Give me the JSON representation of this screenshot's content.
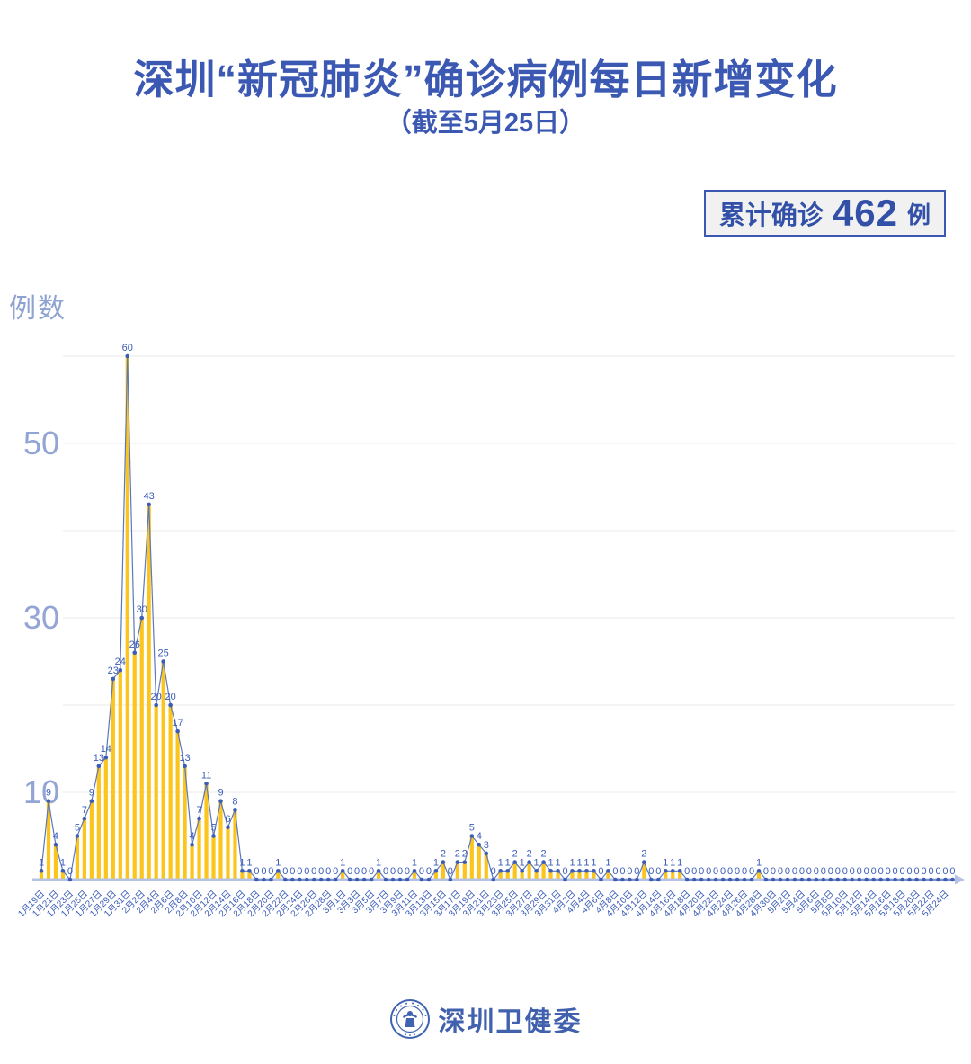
{
  "header": {
    "title": "深圳“新冠肺炎”确诊病例每日新增变化",
    "subtitle": "（截至5月25日）",
    "badge": {
      "label": "累计确诊",
      "value": "462",
      "unit": "例"
    }
  },
  "footer": {
    "org": "深圳卫健委",
    "logo": "shenzhen-health-commission-seal"
  },
  "colors": {
    "primary": "#3A5CB8",
    "title_blue": "#3B59B3",
    "light_axis_label": "#93A5D4",
    "bar": "#FBC51C",
    "line": "#5B78BD",
    "dot": "#3D5DB5",
    "grid": "#E9E9E9",
    "axis_line": "#B6C2E3",
    "badge_bg": "#F1F1F2"
  },
  "chart_data": {
    "type": "bar",
    "title": "深圳“新冠肺炎”确诊病例每日新增变化",
    "subtitle": "（截至5月25日）",
    "ylabel": "例数",
    "xlabel": "",
    "ylim": [
      0,
      62
    ],
    "grid_values": [
      10,
      20,
      30,
      40,
      50,
      60
    ],
    "yticks_labeled": [
      10,
      30,
      50
    ],
    "x_tick_every": 2,
    "legend": "none",
    "total_label": "累计确诊462例",
    "total": 462,
    "categories": [
      "1月19日",
      "1月20日",
      "1月21日",
      "1月22日",
      "1月23日",
      "1月24日",
      "1月25日",
      "1月26日",
      "1月27日",
      "1月28日",
      "1月29日",
      "1月30日",
      "1月31日",
      "2月1日",
      "2月2日",
      "2月3日",
      "2月4日",
      "2月5日",
      "2月6日",
      "2月7日",
      "2月8日",
      "2月9日",
      "2月10日",
      "2月11日",
      "2月12日",
      "2月13日",
      "2月14日",
      "2月15日",
      "2月16日",
      "2月17日",
      "2月18日",
      "2月19日",
      "2月20日",
      "2月21日",
      "2月22日",
      "2月23日",
      "2月24日",
      "2月25日",
      "2月26日",
      "2月27日",
      "2月28日",
      "2月29日",
      "3月1日",
      "3月2日",
      "3月3日",
      "3月4日",
      "3月5日",
      "3月6日",
      "3月7日",
      "3月8日",
      "3月9日",
      "3月10日",
      "3月11日",
      "3月12日",
      "3月13日",
      "3月14日",
      "3月15日",
      "3月16日",
      "3月17日",
      "3月18日",
      "3月19日",
      "3月20日",
      "3月21日",
      "3月22日",
      "3月23日",
      "3月24日",
      "3月25日",
      "3月26日",
      "3月27日",
      "3月28日",
      "3月29日",
      "3月30日",
      "3月31日",
      "4月1日",
      "4月2日",
      "4月3日",
      "4月4日",
      "4月5日",
      "4月6日",
      "4月7日",
      "4月8日",
      "4月9日",
      "4月10日",
      "4月11日",
      "4月12日",
      "4月13日",
      "4月14日",
      "4月15日",
      "4月16日",
      "4月17日",
      "4月18日",
      "4月19日",
      "4月20日",
      "4月21日",
      "4月22日",
      "4月23日",
      "4月24日",
      "4月25日",
      "4月26日",
      "4月27日",
      "4月28日",
      "4月29日",
      "4月30日",
      "5月1日",
      "5月2日",
      "5月3日",
      "5月4日",
      "5月5日",
      "5月6日",
      "5月7日",
      "5月8日",
      "5月9日",
      "5月10日",
      "5月11日",
      "5月12日",
      "5月13日",
      "5月14日",
      "5月15日",
      "5月16日",
      "5月17日",
      "5月18日",
      "5月19日",
      "5月20日",
      "5月21日",
      "5月22日",
      "5月23日",
      "5月24日",
      "5月25日"
    ],
    "values": [
      1,
      9,
      4,
      1,
      0,
      5,
      7,
      9,
      13,
      14,
      23,
      24,
      60,
      26,
      30,
      43,
      20,
      25,
      20,
      17,
      13,
      4,
      7,
      11,
      5,
      9,
      6,
      8,
      1,
      1,
      0,
      0,
      0,
      1,
      0,
      0,
      0,
      0,
      0,
      0,
      0,
      0,
      1,
      0,
      0,
      0,
      0,
      1,
      0,
      0,
      0,
      0,
      1,
      0,
      0,
      1,
      2,
      0,
      2,
      2,
      5,
      4,
      3,
      0,
      1,
      1,
      2,
      1,
      2,
      1,
      2,
      1,
      1,
      0,
      1,
      1,
      1,
      1,
      0,
      1,
      0,
      0,
      0,
      0,
      2,
      0,
      0,
      1,
      1,
      1,
      0,
      0,
      0,
      0,
      0,
      0,
      0,
      0,
      0,
      0,
      1,
      0,
      0,
      0,
      0,
      0,
      0,
      0,
      0,
      0,
      0,
      0,
      0,
      0,
      0,
      0,
      0,
      0,
      0,
      0,
      0,
      0,
      0,
      0,
      0,
      0,
      0,
      0
    ]
  }
}
